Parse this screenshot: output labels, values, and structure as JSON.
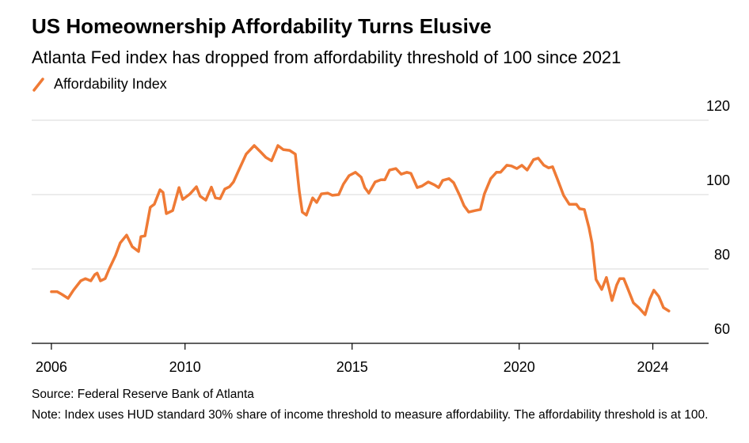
{
  "chart_data": {
    "type": "line",
    "title": "US Homeownership Affordability Turns Elusive",
    "subtitle": "Atlanta Fed index has dropped from affordability threshold of 100 since 2021",
    "source": "Source: Federal Reserve Bank of Atlanta",
    "note": "Note: Index uses HUD standard 30% share of income threshold to measure affordability. The affordability threshold is at 100.",
    "x": [
      2006.0,
      2006.17,
      2006.31,
      2006.5,
      2006.66,
      2006.88,
      2007.02,
      2007.18,
      2007.3,
      2007.37,
      2007.47,
      2007.61,
      2007.73,
      2007.92,
      2008.06,
      2008.25,
      2008.42,
      2008.61,
      2008.68,
      2008.8,
      2008.96,
      2009.08,
      2009.25,
      2009.34,
      2009.44,
      2009.63,
      2009.82,
      2009.93,
      2010.15,
      2010.34,
      2010.45,
      2010.62,
      2010.79,
      2010.91,
      2011.05,
      2011.19,
      2011.33,
      2011.45,
      2011.59,
      2011.83,
      2012.07,
      2012.26,
      2012.42,
      2012.59,
      2012.78,
      2012.94,
      2013.13,
      2013.3,
      2013.42,
      2013.51,
      2013.63,
      2013.82,
      2013.94,
      2014.08,
      2014.27,
      2014.41,
      2014.6,
      2014.74,
      2014.91,
      2015.1,
      2015.27,
      2015.38,
      2015.5,
      2015.69,
      2015.86,
      2015.98,
      2016.12,
      2016.31,
      2016.47,
      2016.64,
      2016.76,
      2016.95,
      2017.09,
      2017.28,
      2017.47,
      2017.59,
      2017.71,
      2017.9,
      2018.04,
      2018.23,
      2018.35,
      2018.49,
      2018.68,
      2018.84,
      2018.96,
      2019.15,
      2019.32,
      2019.44,
      2019.63,
      2019.77,
      2019.93,
      2020.08,
      2020.24,
      2020.43,
      2020.57,
      2020.74,
      2020.88,
      2021.0,
      2021.14,
      2021.33,
      2021.5,
      2021.71,
      2021.81,
      2021.95,
      2022.09,
      2022.18,
      2022.3,
      2022.47,
      2022.61,
      2022.78,
      2022.92,
      2023.01,
      2023.13,
      2023.27,
      2023.42,
      2023.58,
      2023.77,
      2023.91,
      2024.03,
      2024.18,
      2024.32,
      2024.48
    ],
    "series": [
      {
        "name": "Affordability Index",
        "color": "#ef7a35",
        "values": [
          73.9,
          73.9,
          73.2,
          72.1,
          74.3,
          76.8,
          77.4,
          76.8,
          78.5,
          78.9,
          76.8,
          77.4,
          80,
          83.6,
          87,
          89.1,
          86,
          84.7,
          88.7,
          88.9,
          96.6,
          97.4,
          101.3,
          100.6,
          94.9,
          95.7,
          101.9,
          98.7,
          100.2,
          102.1,
          99.6,
          98.5,
          102,
          99.1,
          98.9,
          101.5,
          102.1,
          103.4,
          106.2,
          110.9,
          113.2,
          111.5,
          110,
          109.1,
          113.2,
          112.1,
          111.9,
          110.9,
          100.9,
          95.3,
          94.5,
          99.1,
          97.9,
          100.2,
          100.4,
          99.8,
          100,
          102.8,
          105.1,
          106,
          104.7,
          101.9,
          100.4,
          103.4,
          104,
          104,
          106.6,
          107,
          105.5,
          106,
          105.7,
          101.9,
          102.3,
          103.4,
          102.6,
          101.9,
          103.8,
          104.3,
          103.2,
          99.6,
          97,
          95.3,
          95.7,
          96,
          100.2,
          104.3,
          106,
          106,
          107.9,
          107.7,
          107,
          107.9,
          106.6,
          109.4,
          109.8,
          107.9,
          107.2,
          107.5,
          104.3,
          99.8,
          97.4,
          97.4,
          96.2,
          96,
          91.1,
          87,
          77.2,
          74.5,
          77.7,
          71.5,
          75.7,
          77.4,
          77.4,
          74.3,
          70.9,
          69.6,
          67.7,
          71.9,
          74.3,
          72.6,
          69.6,
          68.7
        ]
      }
    ],
    "xlim": [
      2005.41,
      2025.67
    ],
    "ylim": [
      60,
      120
    ],
    "xticks": [
      2006,
      2010,
      2015,
      2020,
      2024
    ],
    "yticks": [
      60,
      80,
      100,
      120
    ],
    "grid": true
  }
}
